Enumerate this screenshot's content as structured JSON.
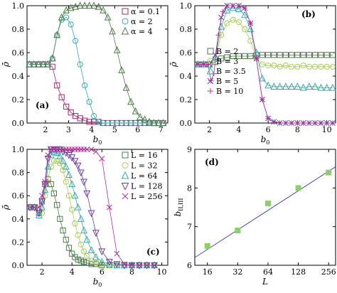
{
  "chart_data": [
    {
      "id": "a",
      "type": "line",
      "panel_label": "(a)",
      "xlabel": "b_0",
      "ylabel": "ρ̄",
      "xlim": [
        1.2,
        7.3
      ],
      "ylim": [
        0,
        1.0
      ],
      "xticks": [
        2,
        3,
        4,
        5,
        6,
        7
      ],
      "yticks": [
        0.0,
        0.2,
        0.4,
        0.6,
        0.8,
        1.0
      ],
      "legend_position": "top-right",
      "series": [
        {
          "name": "α = 0.1",
          "marker": "square",
          "color": "#a2287a",
          "x": [
            1.3,
            1.5,
            1.7,
            1.9,
            2.1,
            2.3,
            2.5,
            2.7,
            2.9,
            3.1,
            3.3,
            3.5,
            3.7,
            3.9,
            4.1,
            4.3,
            4.5,
            4.7,
            4.9,
            5.1,
            5.3,
            5.5,
            5.7,
            5.9,
            6.1,
            6.3,
            6.5,
            6.7,
            6.9,
            7.1
          ],
          "y": [
            0.5,
            0.5,
            0.5,
            0.5,
            0.5,
            0.48,
            0.32,
            0.22,
            0.14,
            0.09,
            0.06,
            0.04,
            0.02,
            0.01,
            0.01,
            0.01,
            0.0,
            0.0,
            0.0,
            0.0,
            0.0,
            0.0,
            0.0,
            0.0,
            0.0,
            0.0,
            0.0,
            0.0,
            0.0,
            0.0
          ]
        },
        {
          "name": "α = 2",
          "marker": "circle",
          "color": "#3aaaa8",
          "x": [
            1.3,
            1.5,
            1.7,
            1.9,
            2.1,
            2.3,
            2.5,
            2.7,
            2.9,
            3.1,
            3.3,
            3.5,
            3.7,
            3.9,
            4.1,
            4.3,
            4.5,
            4.7,
            4.9,
            5.1,
            5.3,
            5.5,
            5.7,
            5.9,
            6.1,
            6.3,
            6.5,
            6.7,
            6.9,
            7.1
          ],
          "y": [
            0.5,
            0.5,
            0.5,
            0.5,
            0.5,
            0.55,
            0.75,
            0.88,
            0.9,
            0.84,
            0.7,
            0.5,
            0.32,
            0.18,
            0.06,
            0.01,
            0.0,
            0.0,
            0.0,
            0.0,
            0.0,
            0.0,
            0.0,
            0.0,
            0.0,
            0.0,
            0.0,
            0.0,
            0.0,
            0.0
          ]
        },
        {
          "name": "α = 4",
          "marker": "triangle",
          "color": "#4f7a4a",
          "x": [
            1.3,
            1.5,
            1.7,
            1.9,
            2.1,
            2.3,
            2.5,
            2.7,
            2.9,
            3.1,
            3.3,
            3.5,
            3.7,
            3.9,
            4.1,
            4.3,
            4.5,
            4.7,
            4.9,
            5.1,
            5.3,
            5.5,
            5.7,
            5.9,
            6.1,
            6.3,
            6.5,
            6.7,
            6.9,
            7.1
          ],
          "y": [
            0.5,
            0.5,
            0.5,
            0.5,
            0.5,
            0.55,
            0.75,
            0.9,
            0.96,
            0.98,
            0.99,
            1.0,
            1.0,
            1.0,
            1.0,
            0.99,
            0.96,
            0.9,
            0.78,
            0.62,
            0.45,
            0.3,
            0.18,
            0.1,
            0.05,
            0.03,
            0.01,
            0.0,
            0.0,
            0.0
          ]
        }
      ]
    },
    {
      "id": "b",
      "type": "line",
      "panel_label": "(b)",
      "xlabel": "b_0",
      "ylabel": "ρ̄",
      "xlim": [
        1.0,
        10.6
      ],
      "ylim": [
        0,
        1.0
      ],
      "xticks": [
        2,
        4,
        6,
        8,
        10
      ],
      "yticks": [
        0.0,
        0.2,
        0.4,
        0.6,
        0.8,
        1.0
      ],
      "legend_position": "lower-left",
      "series": [
        {
          "name": "B = 2",
          "marker": "square",
          "color": "#4f7a4a",
          "x": [
            1.2,
            1.6,
            2.0,
            2.4,
            2.8,
            3.2,
            3.6,
            4.0,
            4.4,
            4.8,
            5.2,
            5.6,
            6.0,
            6.4,
            6.8,
            7.2,
            7.6,
            8.0,
            8.4,
            8.8,
            9.2,
            9.6,
            10.0,
            10.4
          ],
          "y": [
            0.5,
            0.5,
            0.5,
            0.52,
            0.55,
            0.56,
            0.57,
            0.57,
            0.57,
            0.57,
            0.58,
            0.58,
            0.58,
            0.58,
            0.58,
            0.58,
            0.58,
            0.58,
            0.58,
            0.58,
            0.58,
            0.58,
            0.58,
            0.58
          ]
        },
        {
          "name": "B = 3",
          "marker": "circle",
          "color": "#a8cc55",
          "x": [
            1.2,
            1.6,
            2.0,
            2.4,
            2.8,
            3.2,
            3.6,
            4.0,
            4.4,
            4.8,
            5.2,
            5.6,
            6.0,
            6.4,
            6.8,
            7.2,
            7.6,
            8.0,
            8.4,
            8.8,
            9.2,
            9.6,
            10.0,
            10.4
          ],
          "y": [
            0.5,
            0.5,
            0.5,
            0.55,
            0.75,
            0.85,
            0.88,
            0.86,
            0.8,
            0.7,
            0.55,
            0.5,
            0.49,
            0.49,
            0.48,
            0.49,
            0.48,
            0.48,
            0.49,
            0.48,
            0.48,
            0.48,
            0.48,
            0.48
          ]
        },
        {
          "name": "B = 3.5",
          "marker": "triangle",
          "color": "#3aaaa8",
          "x": [
            1.2,
            1.6,
            2.0,
            2.4,
            2.8,
            3.2,
            3.6,
            4.0,
            4.4,
            4.8,
            5.2,
            5.6,
            6.0,
            6.4,
            6.8,
            7.2,
            7.6,
            8.0,
            8.4,
            8.8,
            9.2,
            9.6,
            10.0,
            10.4
          ],
          "y": [
            0.5,
            0.5,
            0.5,
            0.56,
            0.82,
            0.96,
            0.98,
            0.97,
            0.92,
            0.8,
            0.6,
            0.38,
            0.32,
            0.31,
            0.31,
            0.31,
            0.31,
            0.31,
            0.3,
            0.31,
            0.31,
            0.3,
            0.3,
            0.3
          ]
        },
        {
          "name": "B = 5",
          "marker": "cross",
          "color": "#6a3f9a",
          "x": [
            1.2,
            1.6,
            2.0,
            2.4,
            2.8,
            3.2,
            3.6,
            4.0,
            4.4,
            4.8,
            5.2,
            5.6,
            6.0,
            6.4,
            6.8,
            7.2,
            7.6,
            8.0,
            8.4,
            8.8,
            9.2,
            9.6,
            10.0,
            10.4
          ],
          "y": [
            0.5,
            0.5,
            0.5,
            0.58,
            0.9,
            1.0,
            1.0,
            1.0,
            0.98,
            0.85,
            0.55,
            0.2,
            0.04,
            0.01,
            0.0,
            0.0,
            0.0,
            0.0,
            0.0,
            0.0,
            0.0,
            0.0,
            0.0,
            0.0
          ]
        },
        {
          "name": "B = 10",
          "marker": "plus",
          "color": "#b3309a",
          "x": [
            1.2,
            1.6,
            1.9,
            2.1,
            2.3,
            2.6,
            2.9,
            3.2,
            3.6,
            4.0,
            4.4,
            4.8,
            5.2,
            5.6,
            6.0,
            6.4,
            6.8,
            7.2,
            7.6,
            8.0,
            8.4,
            8.8,
            9.2,
            9.6,
            10.0,
            10.4
          ],
          "y": [
            0.5,
            0.5,
            0.5,
            0.36,
            0.42,
            0.75,
            0.95,
            1.0,
            1.0,
            1.0,
            0.98,
            0.85,
            0.55,
            0.2,
            0.04,
            0.01,
            0.0,
            0.0,
            0.0,
            0.0,
            0.0,
            0.0,
            0.0,
            0.0,
            0.0,
            0.0
          ]
        }
      ]
    },
    {
      "id": "c",
      "type": "line",
      "panel_label": "(c)",
      "xlabel": "b_0",
      "ylabel": "ρ̄",
      "xlim": [
        1.0,
        10.4
      ],
      "ylim": [
        0,
        1.0
      ],
      "xticks": [
        2,
        4,
        6,
        8,
        10
      ],
      "yticks": [
        0.0,
        0.2,
        0.4,
        0.6,
        0.8,
        1.0
      ],
      "legend_position": "top-right",
      "series": [
        {
          "name": "L = 16",
          "marker": "square",
          "color": "#4f7a4a",
          "x": [
            1.2,
            1.5,
            1.8,
            2.0,
            2.2,
            2.4,
            2.6,
            2.8,
            3.0,
            3.2,
            3.4,
            3.6,
            3.8,
            4.0,
            4.2,
            4.4,
            4.6,
            4.8,
            5.0,
            5.3,
            5.6,
            6.0,
            6.5,
            7.0,
            7.5,
            8.0,
            8.5,
            9.0,
            9.5
          ],
          "y": [
            0.5,
            0.5,
            0.45,
            0.55,
            0.7,
            0.74,
            0.7,
            0.62,
            0.52,
            0.4,
            0.3,
            0.22,
            0.15,
            0.1,
            0.07,
            0.05,
            0.04,
            0.03,
            0.02,
            0.01,
            0.01,
            0.0,
            0.0,
            0.0,
            0.0,
            0.0,
            0.0,
            0.0,
            0.0
          ]
        },
        {
          "name": "L = 32",
          "marker": "circle",
          "color": "#a8cc55",
          "x": [
            1.2,
            1.5,
            1.8,
            2.0,
            2.2,
            2.4,
            2.6,
            2.8,
            3.0,
            3.2,
            3.4,
            3.6,
            3.8,
            4.0,
            4.2,
            4.4,
            4.6,
            4.8,
            5.0,
            5.3,
            5.6,
            6.0,
            6.5,
            7.0,
            7.5,
            8.0,
            8.5,
            9.0,
            9.5
          ],
          "y": [
            0.5,
            0.5,
            0.45,
            0.45,
            0.6,
            0.75,
            0.85,
            0.9,
            0.9,
            0.88,
            0.82,
            0.72,
            0.6,
            0.48,
            0.36,
            0.26,
            0.18,
            0.12,
            0.08,
            0.04,
            0.02,
            0.01,
            0.0,
            0.0,
            0.0,
            0.0,
            0.0,
            0.0,
            0.0
          ]
        },
        {
          "name": "L = 64",
          "marker": "triangle",
          "color": "#3aaaa8",
          "x": [
            1.2,
            1.5,
            1.8,
            2.0,
            2.2,
            2.4,
            2.6,
            2.8,
            3.0,
            3.2,
            3.4,
            3.6,
            3.8,
            4.0,
            4.2,
            4.4,
            4.6,
            4.8,
            5.0,
            5.3,
            5.6,
            6.0,
            6.5,
            7.0,
            7.5,
            8.0,
            8.5,
            9.0,
            9.5
          ],
          "y": [
            0.5,
            0.5,
            0.43,
            0.5,
            0.65,
            0.85,
            0.95,
            0.98,
            0.97,
            0.94,
            0.9,
            0.85,
            0.78,
            0.7,
            0.6,
            0.5,
            0.4,
            0.3,
            0.22,
            0.13,
            0.07,
            0.03,
            0.01,
            0.0,
            0.0,
            0.0,
            0.0,
            0.0,
            0.0
          ]
        },
        {
          "name": "L = 128",
          "marker": "tri-down",
          "color": "#6a3f9a",
          "x": [
            1.2,
            1.5,
            1.8,
            2.0,
            2.2,
            2.4,
            2.6,
            2.8,
            3.0,
            3.2,
            3.4,
            3.6,
            3.8,
            4.0,
            4.2,
            4.4,
            4.6,
            4.8,
            5.0,
            5.3,
            5.6,
            6.0,
            6.5,
            7.0,
            7.5,
            8.0,
            8.5,
            9.0,
            9.5
          ],
          "y": [
            0.5,
            0.5,
            0.45,
            0.55,
            0.7,
            0.92,
            1.0,
            1.0,
            1.0,
            1.0,
            0.98,
            0.97,
            0.95,
            0.93,
            0.9,
            0.86,
            0.8,
            0.72,
            0.62,
            0.45,
            0.28,
            0.12,
            0.03,
            0.01,
            0.0,
            0.0,
            0.0,
            0.0,
            0.0
          ]
        },
        {
          "name": "L = 256",
          "marker": "cross",
          "color": "#b3309a",
          "x": [
            1.2,
            1.5,
            1.8,
            2.0,
            2.2,
            2.4,
            2.6,
            2.8,
            3.0,
            3.2,
            3.4,
            3.6,
            3.8,
            4.0,
            4.2,
            4.4,
            4.6,
            4.8,
            5.0,
            5.3,
            5.6,
            6.0,
            6.5,
            7.0,
            7.5,
            8.0,
            8.5,
            9.0,
            9.5
          ],
          "y": [
            0.5,
            0.5,
            0.5,
            0.6,
            0.72,
            0.95,
            1.0,
            1.0,
            1.0,
            1.0,
            1.0,
            1.0,
            1.0,
            1.0,
            1.0,
            1.0,
            1.0,
            1.0,
            1.0,
            1.0,
            0.98,
            0.92,
            0.5,
            0.1,
            0.01,
            0.0,
            0.0,
            0.0,
            0.0
          ]
        }
      ]
    },
    {
      "id": "d",
      "type": "scatter",
      "panel_label": "(d)",
      "xlabel": "L",
      "ylabel": "b_II,III",
      "xscale": "log2",
      "xlim": [
        12,
        300
      ],
      "ylim": [
        6,
        9
      ],
      "xticks": [
        16,
        32,
        64,
        128,
        256
      ],
      "yticks": [
        6,
        7,
        8,
        9
      ],
      "series": [
        {
          "name": "",
          "marker": "square-filled",
          "color": "#8fcf6a",
          "x": [
            16,
            32,
            64,
            128,
            256
          ],
          "y": [
            6.5,
            6.9,
            7.6,
            8.0,
            8.4
          ]
        }
      ],
      "fit_line": {
        "x": [
          12,
          300
        ],
        "y": [
          6.2,
          8.55
        ],
        "color": "#4a4aa8"
      }
    }
  ]
}
